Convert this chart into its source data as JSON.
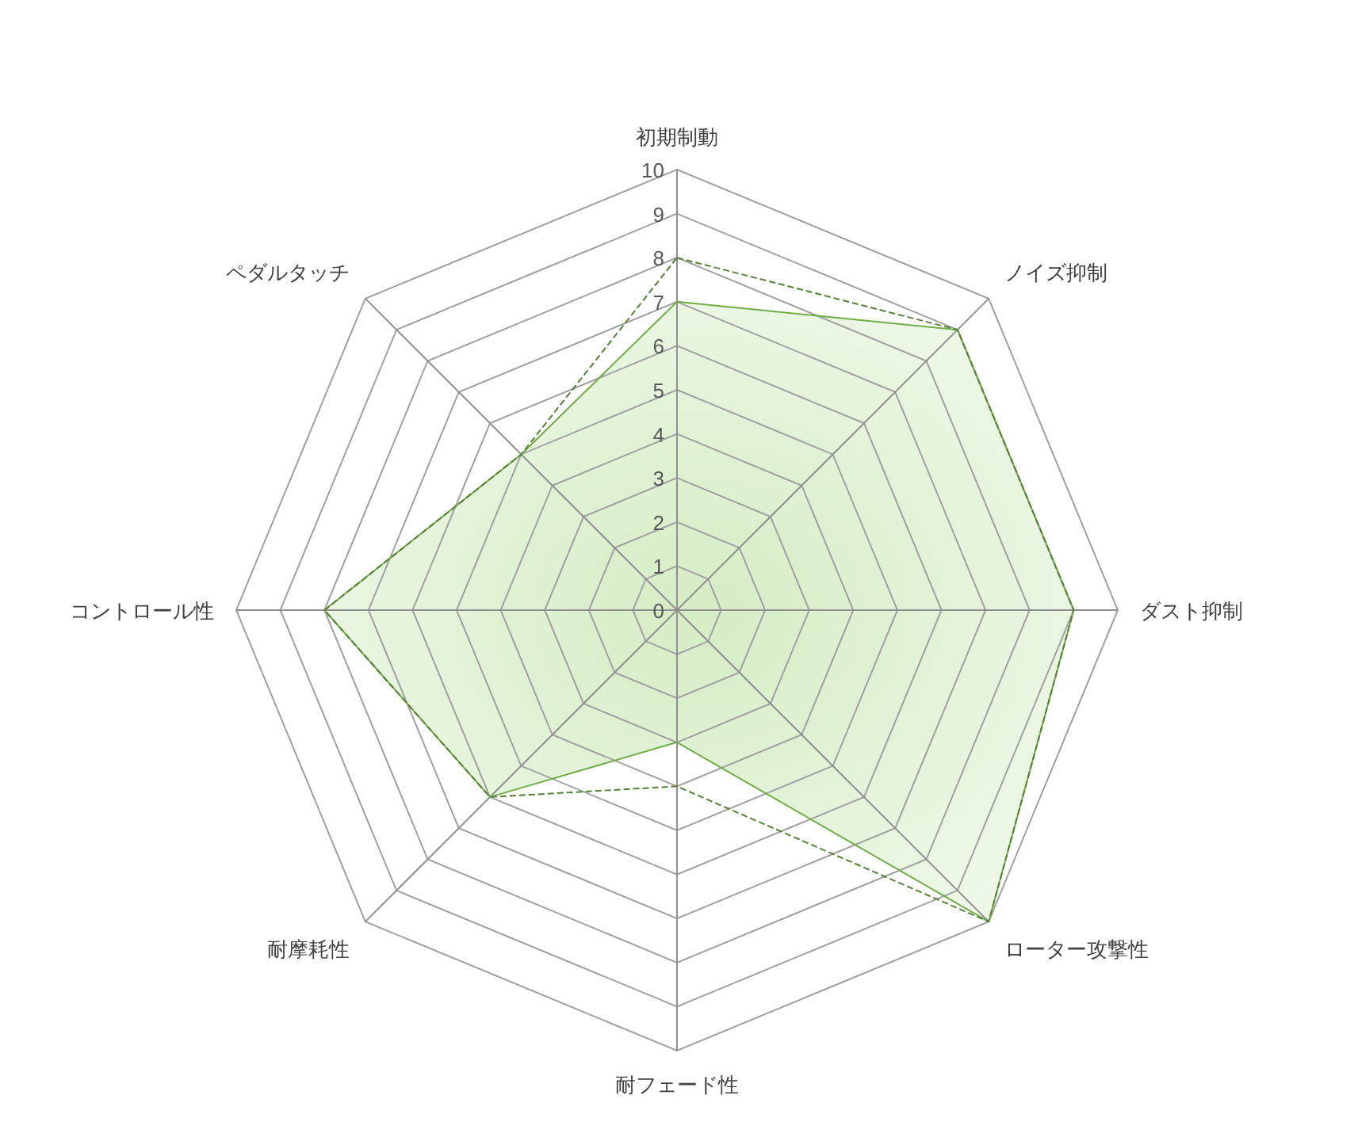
{
  "chart_data": {
    "type": "radar",
    "categories": [
      "初期制動",
      "ノイズ抑制",
      "ダスト抑制",
      "ローター攻撃性",
      "耐フェード性",
      "耐摩耗性",
      "コントロール性",
      "ペダルタッチ"
    ],
    "ylim": [
      0,
      10
    ],
    "yticks": [
      0,
      1,
      2,
      3,
      4,
      5,
      6,
      7,
      8,
      9,
      10
    ],
    "grid": true,
    "series": [
      {
        "color": "#70ad47",
        "line_style": "solid",
        "values": [
          7,
          9,
          9,
          10,
          3,
          6,
          8,
          5
        ]
      },
      {
        "color": "#548235",
        "line_style": "dashed",
        "values": [
          8,
          9,
          9,
          10,
          4,
          6,
          8,
          5
        ]
      }
    ]
  }
}
